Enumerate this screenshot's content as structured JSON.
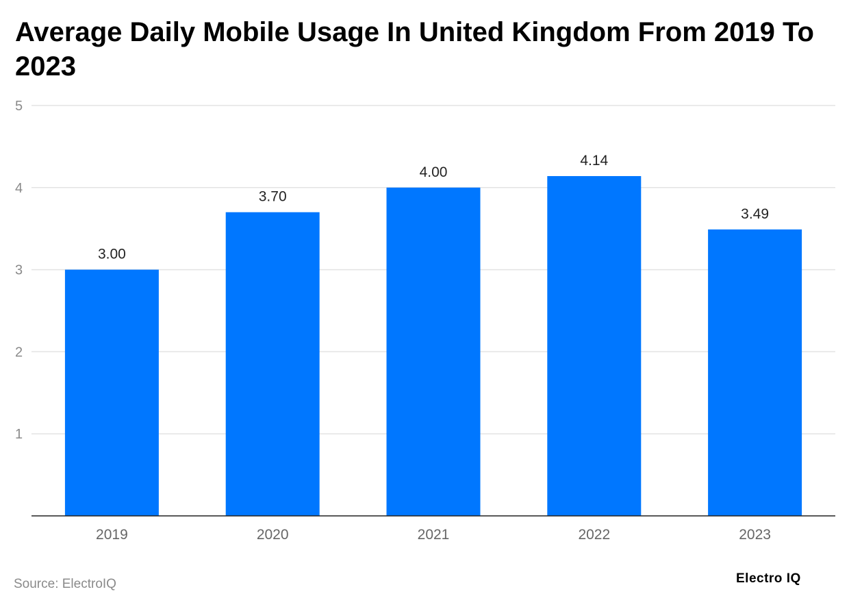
{
  "chart_data": {
    "type": "bar",
    "title": "Average Daily Mobile Usage In United Kingdom From 2019 To 2023",
    "categories": [
      "2019",
      "2020",
      "2021",
      "2022",
      "2023"
    ],
    "values": [
      3.0,
      3.7,
      4.0,
      4.14,
      3.49
    ],
    "data_labels": [
      "3.00",
      "3.70",
      "4.00",
      "4.14",
      "3.49"
    ],
    "xlabel": "",
    "ylabel": "",
    "ylim": [
      0,
      5
    ],
    "yticks": [
      "1",
      "2",
      "3",
      "4",
      "5"
    ],
    "grid": true,
    "bar_color": "#0077ff"
  },
  "footer": {
    "source": "Source: ElectroIQ",
    "logo": "Electro IQ"
  }
}
